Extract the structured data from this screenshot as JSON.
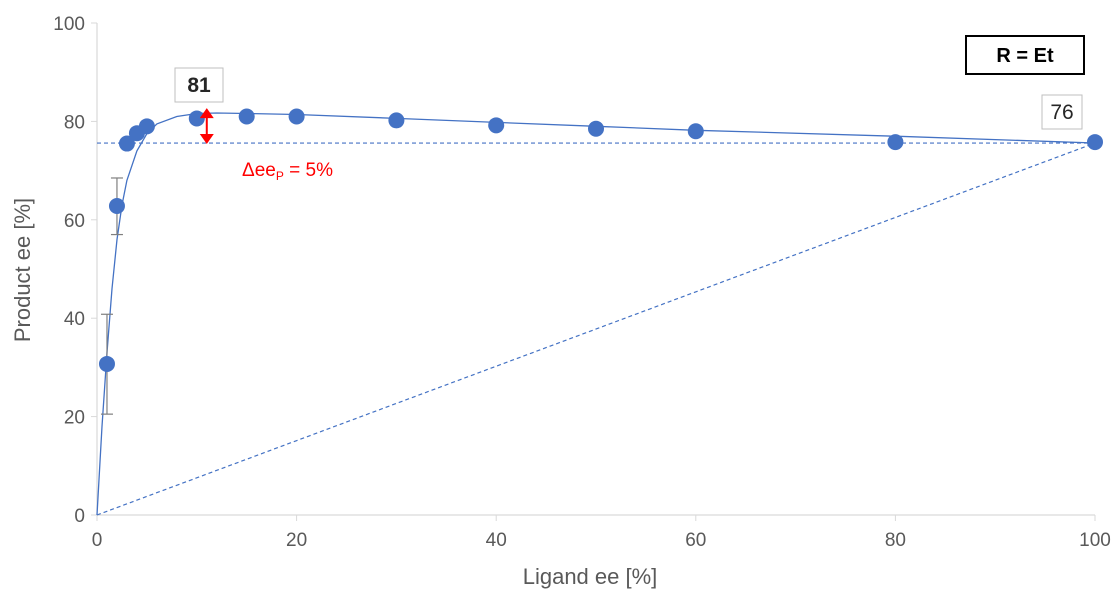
{
  "chart_data": {
    "type": "scatter",
    "xlabel": "Ligand ee [%]",
    "ylabel": "Product ee [%]",
    "xlim": [
      0,
      100
    ],
    "ylim": [
      0,
      100
    ],
    "x_ticks": [
      "0",
      "20",
      "40",
      "60",
      "80",
      "100"
    ],
    "y_ticks": [
      "0",
      "20",
      "40",
      "60",
      "80",
      "100"
    ],
    "grid": false,
    "series": [
      {
        "points": [
          {
            "x": 1,
            "y": 30.7,
            "err_low": 20.5,
            "err_high": 40.8
          },
          {
            "x": 2,
            "y": 62.8,
            "err_low": 57.0,
            "err_high": 68.5
          },
          {
            "x": 3,
            "y": 75.5
          },
          {
            "x": 4,
            "y": 77.6
          },
          {
            "x": 5,
            "y": 79.0
          },
          {
            "x": 10,
            "y": 80.6
          },
          {
            "x": 15,
            "y": 81.0
          },
          {
            "x": 20,
            "y": 81.0
          },
          {
            "x": 30,
            "y": 80.2
          },
          {
            "x": 40,
            "y": 79.2
          },
          {
            "x": 50,
            "y": 78.5
          },
          {
            "x": 60,
            "y": 78.0
          },
          {
            "x": 80,
            "y": 75.8
          },
          {
            "x": 100,
            "y": 75.8
          }
        ],
        "color": "#4472c4"
      }
    ],
    "fit_curve": [
      [
        0,
        0
      ],
      [
        0.5,
        18
      ],
      [
        1,
        33
      ],
      [
        1.5,
        46
      ],
      [
        2,
        56
      ],
      [
        2.5,
        63
      ],
      [
        3,
        68
      ],
      [
        4,
        74
      ],
      [
        5,
        77.5
      ],
      [
        6,
        79.5
      ],
      [
        8,
        81
      ],
      [
        10,
        81.6
      ],
      [
        12,
        81.7
      ],
      [
        15,
        81.6
      ],
      [
        20,
        81.4
      ],
      [
        30,
        80.6
      ],
      [
        40,
        79.8
      ],
      [
        50,
        79.0
      ],
      [
        60,
        78.2
      ],
      [
        80,
        77.0
      ],
      [
        100,
        75.6
      ]
    ],
    "reference_lines": {
      "horizontal_y": 75.6,
      "diagonal": [
        [
          0,
          0
        ],
        [
          100,
          75.6
        ]
      ],
      "color": "#4472c4"
    },
    "annotations": {
      "max_label": "81",
      "end_label": "76",
      "delta_main": "Δee",
      "delta_sub": "P",
      "delta_rest": " = 5%",
      "delta_color": "#ff0000",
      "delta_arrow": {
        "x": 11,
        "y_top": 82.5,
        "y_bottom": 75.6
      }
    },
    "legend_box": "R = Et"
  }
}
